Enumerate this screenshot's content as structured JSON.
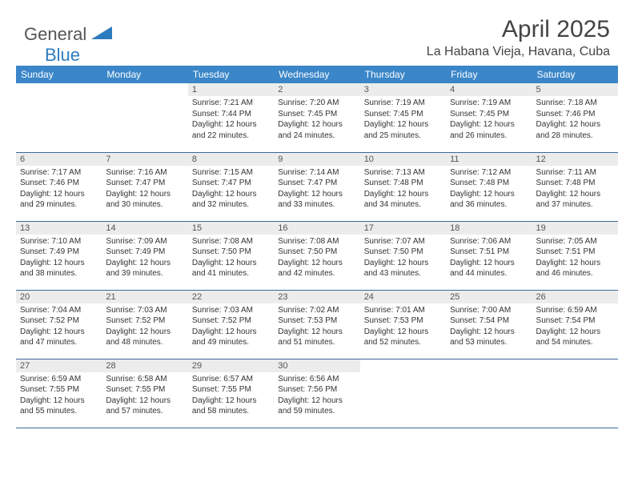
{
  "header": {
    "logo_general": "General",
    "logo_blue": "Blue",
    "month_title": "April 2025",
    "location": "La Habana Vieja, Havana, Cuba"
  },
  "colors": {
    "header_bg": "#3a86c8",
    "header_text": "#ffffff",
    "daynum_bg": "#ececec",
    "border": "#3a6a9a",
    "logo_blue": "#2f7bbf"
  },
  "weekdays": [
    "Sunday",
    "Monday",
    "Tuesday",
    "Wednesday",
    "Thursday",
    "Friday",
    "Saturday"
  ],
  "weeks": [
    [
      {
        "blank": true
      },
      {
        "blank": true
      },
      {
        "num": "1",
        "sunrise": "Sunrise: 7:21 AM",
        "sunset": "Sunset: 7:44 PM",
        "daylight": "Daylight: 12 hours and 22 minutes."
      },
      {
        "num": "2",
        "sunrise": "Sunrise: 7:20 AM",
        "sunset": "Sunset: 7:45 PM",
        "daylight": "Daylight: 12 hours and 24 minutes."
      },
      {
        "num": "3",
        "sunrise": "Sunrise: 7:19 AM",
        "sunset": "Sunset: 7:45 PM",
        "daylight": "Daylight: 12 hours and 25 minutes."
      },
      {
        "num": "4",
        "sunrise": "Sunrise: 7:19 AM",
        "sunset": "Sunset: 7:45 PM",
        "daylight": "Daylight: 12 hours and 26 minutes."
      },
      {
        "num": "5",
        "sunrise": "Sunrise: 7:18 AM",
        "sunset": "Sunset: 7:46 PM",
        "daylight": "Daylight: 12 hours and 28 minutes."
      }
    ],
    [
      {
        "num": "6",
        "sunrise": "Sunrise: 7:17 AM",
        "sunset": "Sunset: 7:46 PM",
        "daylight": "Daylight: 12 hours and 29 minutes."
      },
      {
        "num": "7",
        "sunrise": "Sunrise: 7:16 AM",
        "sunset": "Sunset: 7:47 PM",
        "daylight": "Daylight: 12 hours and 30 minutes."
      },
      {
        "num": "8",
        "sunrise": "Sunrise: 7:15 AM",
        "sunset": "Sunset: 7:47 PM",
        "daylight": "Daylight: 12 hours and 32 minutes."
      },
      {
        "num": "9",
        "sunrise": "Sunrise: 7:14 AM",
        "sunset": "Sunset: 7:47 PM",
        "daylight": "Daylight: 12 hours and 33 minutes."
      },
      {
        "num": "10",
        "sunrise": "Sunrise: 7:13 AM",
        "sunset": "Sunset: 7:48 PM",
        "daylight": "Daylight: 12 hours and 34 minutes."
      },
      {
        "num": "11",
        "sunrise": "Sunrise: 7:12 AM",
        "sunset": "Sunset: 7:48 PM",
        "daylight": "Daylight: 12 hours and 36 minutes."
      },
      {
        "num": "12",
        "sunrise": "Sunrise: 7:11 AM",
        "sunset": "Sunset: 7:48 PM",
        "daylight": "Daylight: 12 hours and 37 minutes."
      }
    ],
    [
      {
        "num": "13",
        "sunrise": "Sunrise: 7:10 AM",
        "sunset": "Sunset: 7:49 PM",
        "daylight": "Daylight: 12 hours and 38 minutes."
      },
      {
        "num": "14",
        "sunrise": "Sunrise: 7:09 AM",
        "sunset": "Sunset: 7:49 PM",
        "daylight": "Daylight: 12 hours and 39 minutes."
      },
      {
        "num": "15",
        "sunrise": "Sunrise: 7:08 AM",
        "sunset": "Sunset: 7:50 PM",
        "daylight": "Daylight: 12 hours and 41 minutes."
      },
      {
        "num": "16",
        "sunrise": "Sunrise: 7:08 AM",
        "sunset": "Sunset: 7:50 PM",
        "daylight": "Daylight: 12 hours and 42 minutes."
      },
      {
        "num": "17",
        "sunrise": "Sunrise: 7:07 AM",
        "sunset": "Sunset: 7:50 PM",
        "daylight": "Daylight: 12 hours and 43 minutes."
      },
      {
        "num": "18",
        "sunrise": "Sunrise: 7:06 AM",
        "sunset": "Sunset: 7:51 PM",
        "daylight": "Daylight: 12 hours and 44 minutes."
      },
      {
        "num": "19",
        "sunrise": "Sunrise: 7:05 AM",
        "sunset": "Sunset: 7:51 PM",
        "daylight": "Daylight: 12 hours and 46 minutes."
      }
    ],
    [
      {
        "num": "20",
        "sunrise": "Sunrise: 7:04 AM",
        "sunset": "Sunset: 7:52 PM",
        "daylight": "Daylight: 12 hours and 47 minutes."
      },
      {
        "num": "21",
        "sunrise": "Sunrise: 7:03 AM",
        "sunset": "Sunset: 7:52 PM",
        "daylight": "Daylight: 12 hours and 48 minutes."
      },
      {
        "num": "22",
        "sunrise": "Sunrise: 7:03 AM",
        "sunset": "Sunset: 7:52 PM",
        "daylight": "Daylight: 12 hours and 49 minutes."
      },
      {
        "num": "23",
        "sunrise": "Sunrise: 7:02 AM",
        "sunset": "Sunset: 7:53 PM",
        "daylight": "Daylight: 12 hours and 51 minutes."
      },
      {
        "num": "24",
        "sunrise": "Sunrise: 7:01 AM",
        "sunset": "Sunset: 7:53 PM",
        "daylight": "Daylight: 12 hours and 52 minutes."
      },
      {
        "num": "25",
        "sunrise": "Sunrise: 7:00 AM",
        "sunset": "Sunset: 7:54 PM",
        "daylight": "Daylight: 12 hours and 53 minutes."
      },
      {
        "num": "26",
        "sunrise": "Sunrise: 6:59 AM",
        "sunset": "Sunset: 7:54 PM",
        "daylight": "Daylight: 12 hours and 54 minutes."
      }
    ],
    [
      {
        "num": "27",
        "sunrise": "Sunrise: 6:59 AM",
        "sunset": "Sunset: 7:55 PM",
        "daylight": "Daylight: 12 hours and 55 minutes."
      },
      {
        "num": "28",
        "sunrise": "Sunrise: 6:58 AM",
        "sunset": "Sunset: 7:55 PM",
        "daylight": "Daylight: 12 hours and 57 minutes."
      },
      {
        "num": "29",
        "sunrise": "Sunrise: 6:57 AM",
        "sunset": "Sunset: 7:55 PM",
        "daylight": "Daylight: 12 hours and 58 minutes."
      },
      {
        "num": "30",
        "sunrise": "Sunrise: 6:56 AM",
        "sunset": "Sunset: 7:56 PM",
        "daylight": "Daylight: 12 hours and 59 minutes."
      },
      {
        "blank": true
      },
      {
        "blank": true
      },
      {
        "blank": true
      }
    ]
  ]
}
